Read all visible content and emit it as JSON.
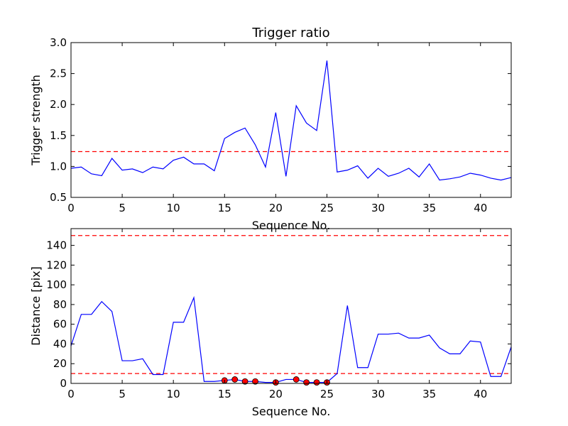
{
  "chart_data": [
    {
      "type": "line",
      "title": "Trigger ratio",
      "xlabel": "Sequence No.",
      "ylabel": "Trigger strength",
      "xlim": [
        0,
        43
      ],
      "ylim": [
        0.5,
        3.0
      ],
      "xticks": [
        0,
        5,
        10,
        15,
        20,
        25,
        30,
        35,
        40
      ],
      "yticks": [
        0.5,
        1.0,
        1.5,
        2.0,
        2.5,
        3.0
      ],
      "ytick_labels": [
        "0.5",
        "1.0",
        "1.5",
        "2.0",
        "2.5",
        "3.0"
      ],
      "series": [
        {
          "color": "#0000ff",
          "x": [
            0,
            1,
            2,
            3,
            4,
            5,
            6,
            7,
            8,
            9,
            10,
            11,
            12,
            13,
            14,
            15,
            16,
            17,
            18,
            19,
            20,
            21,
            22,
            23,
            24,
            25,
            26,
            27,
            28,
            29,
            30,
            31,
            32,
            33,
            34,
            35,
            36,
            37,
            38,
            39,
            40,
            41,
            42,
            43
          ],
          "y": [
            0.97,
            0.99,
            0.88,
            0.85,
            1.13,
            0.94,
            0.96,
            0.9,
            0.99,
            0.96,
            1.1,
            1.15,
            1.04,
            1.04,
            0.93,
            1.45,
            1.55,
            1.62,
            1.35,
            0.99,
            1.87,
            0.84,
            1.98,
            1.7,
            1.58,
            2.71,
            0.91,
            0.94,
            1.01,
            0.81,
            0.97,
            0.84,
            0.89,
            0.97,
            0.83,
            1.04,
            0.78,
            0.8,
            0.83,
            0.89,
            0.86,
            0.81,
            0.78,
            0.82
          ]
        }
      ],
      "hlines": [
        {
          "y": 1.24,
          "color": "#ff0000",
          "style": "dashed"
        }
      ]
    },
    {
      "type": "line",
      "title": "",
      "xlabel": "Sequence No.",
      "ylabel": "Distance [pix]",
      "xlim": [
        0,
        43
      ],
      "ylim": [
        0,
        157
      ],
      "xticks": [
        0,
        5,
        10,
        15,
        20,
        25,
        30,
        35,
        40
      ],
      "yticks": [
        0,
        20,
        40,
        60,
        80,
        100,
        120,
        140
      ],
      "ytick_labels": [
        "0",
        "20",
        "40",
        "60",
        "80",
        "100",
        "120",
        "140"
      ],
      "series": [
        {
          "color": "#0000ff",
          "x": [
            0,
            1,
            2,
            3,
            4,
            5,
            6,
            7,
            8,
            9,
            10,
            11,
            12,
            13,
            14,
            15,
            16,
            17,
            18,
            19,
            20,
            21,
            22,
            23,
            24,
            25,
            26,
            27,
            28,
            29,
            30,
            31,
            32,
            33,
            34,
            35,
            36,
            37,
            38,
            39,
            40,
            41,
            42,
            43
          ],
          "y": [
            38,
            70,
            70,
            83,
            73,
            23,
            23,
            25,
            9,
            9,
            62,
            62,
            87,
            2,
            2,
            3,
            4,
            2,
            2,
            1,
            1,
            4,
            4,
            1,
            1,
            1,
            10,
            79,
            16,
            16,
            50,
            50,
            51,
            46,
            46,
            49,
            36,
            30,
            30,
            43,
            42,
            7,
            7,
            37
          ]
        }
      ],
      "markers": {
        "color": "#ff0000",
        "x": [
          15,
          16,
          17,
          18,
          20,
          22,
          23,
          24,
          25
        ],
        "y": [
          3,
          4,
          2,
          2,
          1,
          4,
          1,
          1,
          1
        ]
      },
      "hlines": [
        {
          "y": 150,
          "color": "#ff0000",
          "style": "dashed"
        },
        {
          "y": 10,
          "color": "#ff0000",
          "style": "dashed"
        }
      ]
    }
  ]
}
